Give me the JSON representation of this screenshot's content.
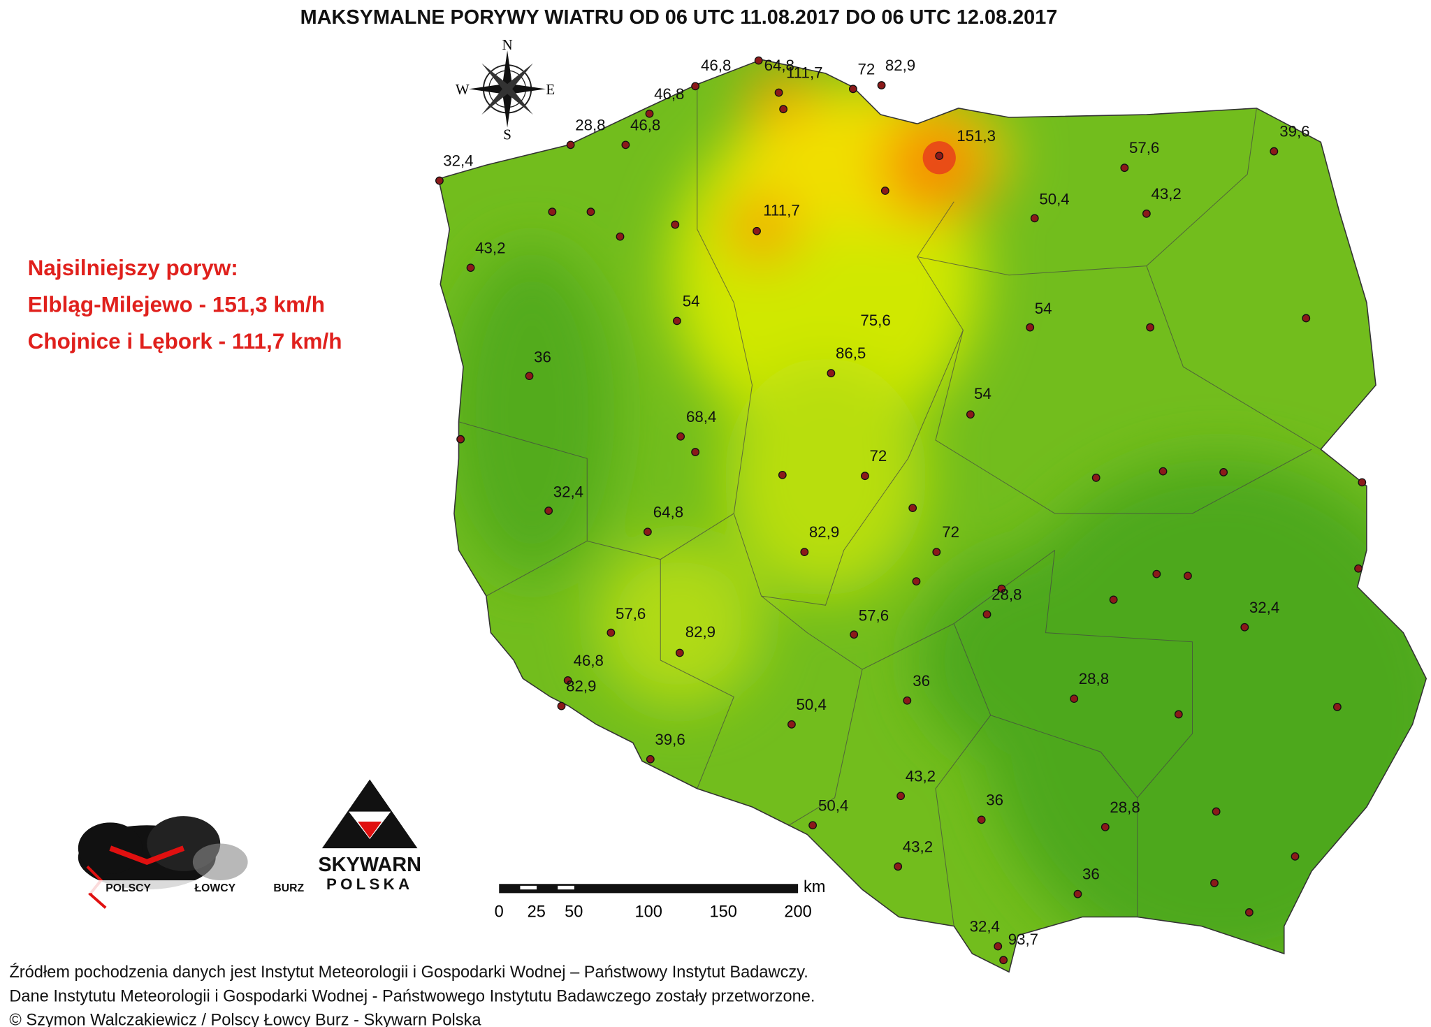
{
  "title": "MAKSYMALNE PORYWY WIATRU OD 06 UTC 11.08.2017 DO 06 UTC 12.08.2017",
  "highlight": [
    "Najsilniejszy poryw:",
    "Elbląg-Milejewo - 151,3 km/h",
    "Chojnice i Lębork - 111,7 km/h"
  ],
  "compass": [
    "N",
    "W",
    "E",
    "S"
  ],
  "stations": [
    "64,8",
    "111,7",
    "72",
    "82,9",
    "46,8",
    "46,8",
    "46,8",
    "28,8",
    "32,4",
    "151,3",
    "57,6",
    "39,6",
    "50,4",
    "43,2",
    "111,7",
    "43,2",
    "54",
    "54",
    "75,6",
    "86,5",
    "36",
    "54",
    "68,4",
    "72",
    "32,4",
    "64,8",
    "82,9",
    "72",
    "28,8",
    "32,4",
    "57,6",
    "57,6",
    "82,9",
    "46,8",
    "82,9",
    "36",
    "28,8",
    "50,4",
    "39,6",
    "43,2",
    "36",
    "28,8",
    "50,4",
    "43,2",
    "36",
    "32,4",
    "93,7"
  ],
  "scale_bar": {
    "ticks": [
      0,
      25,
      50,
      100,
      150,
      200
    ],
    "unit": "km"
  },
  "logos": [
    "POLSCY",
    "ŁOWCY",
    "BURZ",
    "SKYWARN",
    "POLSKA"
  ],
  "footer": [
    "Źródłem pochodzenia danych jest Instytut Meteorologii i Gospodarki Wodnej – Państwowy Instytut Badawczy.",
    "Dane Instytutu Meteorologii i Gospodarki Wodnej - Państwowego Instytutu Badawczego zostały przetworzone.",
    "© Szymon Walczakiewicz / Polscy Łowcy Burz - Skywarn Polska"
  ]
}
